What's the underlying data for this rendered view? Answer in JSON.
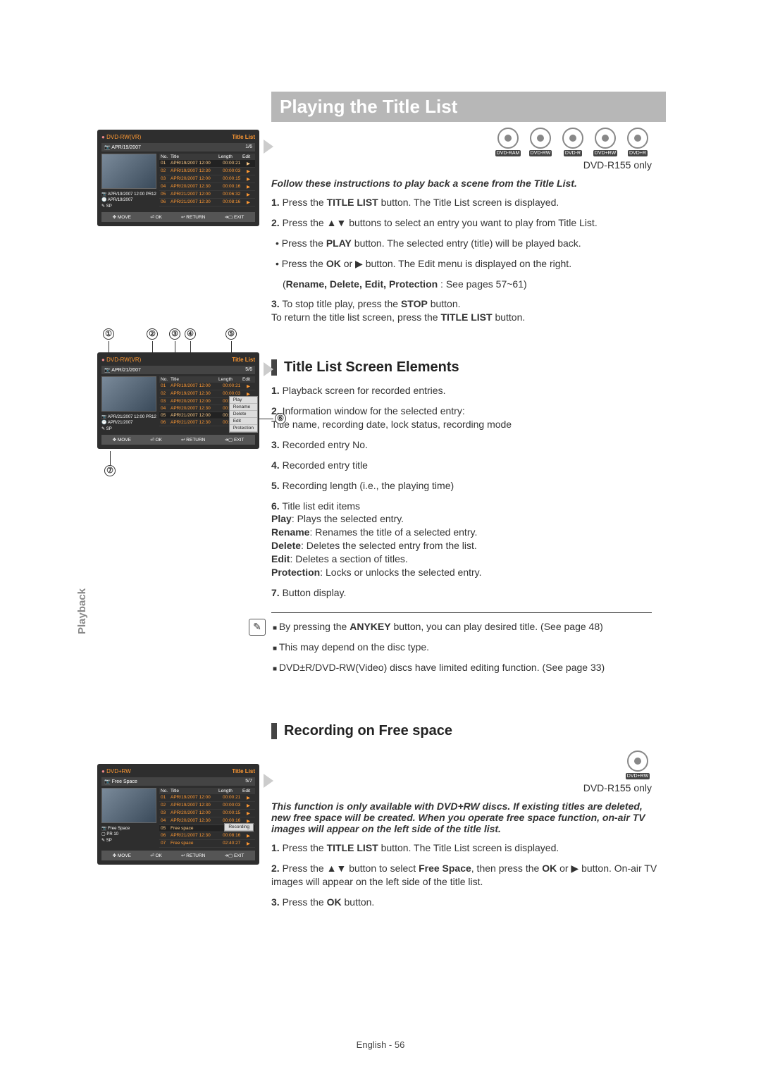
{
  "page": {
    "side_tab": "Playback",
    "footer": "English - 56"
  },
  "heading": "Playing the Title List",
  "discs": [
    "DVD-RAM",
    "DVD-RW",
    "DVD-R",
    "DVD+RW",
    "DVD+R"
  ],
  "model_note": "DVD-R155 only",
  "intro1": "Follow these instructions to play back a scene from the Title List.",
  "steps1": [
    {
      "n": "1.",
      "html": "Press the <b>TITLE LIST</b> button. The Title List screen is displayed."
    },
    {
      "n": "2.",
      "html": "Press the ▲▼ buttons to select an entry you want to play from Title List."
    },
    {
      "sub": true,
      "html": "Press the <b>PLAY</b> button. The selected entry (title) will be played back."
    },
    {
      "sub": true,
      "html": "Press the <b>OK</b> or ▶ button. The Edit menu is displayed on the right."
    },
    {
      "indent": true,
      "html": "(<b>Rename, Delete, Edit, Protection</b> : See pages 57~61)"
    },
    {
      "n": "3.",
      "html": "To stop title play, press the <b>STOP</b> button.<br>To return the title list screen, press the <b>TITLE LIST</b> button."
    }
  ],
  "sub_heading1": "Title List Screen Elements",
  "elements": [
    {
      "n": "1.",
      "html": "Playback screen for recorded entries."
    },
    {
      "n": "2.",
      "html": "Information window for the selected entry:<br>Title name, recording date, lock status, recording mode"
    },
    {
      "n": "3.",
      "html": "Recorded entry No."
    },
    {
      "n": "4.",
      "html": "Recorded entry title"
    },
    {
      "n": "5.",
      "html": "Recording length (i.e., the playing time)"
    },
    {
      "n": "6.",
      "html": "Title list edit items<br><b>Play</b>: Plays the selected entry.<br><b>Rename</b>: Renames the title of a selected entry.<br><b>Delete</b>: Deletes the selected entry from the list.<br><b>Edit</b>: Deletes a section of titles.<br><b>Protection</b>: Locks or unlocks the selected entry."
    },
    {
      "n": "7.",
      "html": "Button display."
    }
  ],
  "notes": [
    "By pressing the <b>ANYKEY</b> button, you can play desired title. (See page 48)",
    "This may depend on the disc type.",
    "DVD±R/DVD-RW(Video) discs have limited editing function. (See page 33)"
  ],
  "sub_heading2": "Recording on Free space",
  "discs2": [
    "DVD+RW"
  ],
  "intro2": "This function is only available with DVD+RW discs. If existing titles are deleted, new free space will be created. When you operate free space function, on-air TV images will appear on the left side of the title list.",
  "steps2": [
    {
      "n": "1.",
      "html": "Press the <b>TITLE LIST</b> button. The Title List screen is displayed."
    },
    {
      "n": "2.",
      "html": "Press the ▲▼ button to select <b>Free Space</b>, then press the <b>OK</b> or ▶ button. On-air TV images will appear on the left side of the title list."
    },
    {
      "n": "3.",
      "html": "Press the <b>OK</b> button."
    }
  ],
  "ui1": {
    "disc": "DVD-RW(VR)",
    "tl": "Title List",
    "sub_l": "📷 APR/19/2007",
    "sub_r": "1/6",
    "info": [
      "📷 APR/19/2007 12:00 PR12",
      "🕐 APR/19/2007",
      "✎   SP"
    ],
    "head": [
      "No.",
      "Title",
      "Length",
      "Edit"
    ],
    "rows": [
      [
        "01",
        "APR/19/2007 12:00",
        "00:00:21",
        "▶"
      ],
      [
        "02",
        "APR/19/2007 12:30",
        "00:00:03",
        "▶"
      ],
      [
        "03",
        "APR/20/2007 12:00",
        "00:00:15",
        "▶"
      ],
      [
        "04",
        "APR/20/2007 12:30",
        "00:00:16",
        "▶"
      ],
      [
        "05",
        "APR/21/2007 12:00",
        "00:06:32",
        "▶"
      ],
      [
        "06",
        "APR/21/2007 12:30",
        "00:08:16",
        "▶"
      ]
    ],
    "footer": [
      "✥ MOVE",
      "⏎ OK",
      "↩ RETURN",
      "➜▢ EXIT"
    ]
  },
  "ui2": {
    "disc": "DVD-RW(VR)",
    "tl": "Title List",
    "sub_l": "📷 APR/21/2007",
    "sub_r": "5/6",
    "info": [
      "📷 APR/21/2007 12:00 PR12",
      "🕐 APR/21/2007",
      "✎   SP"
    ],
    "head": [
      "No.",
      "Title",
      "Length",
      "Edit"
    ],
    "rows": [
      [
        "01",
        "APR/19/2007 12:00",
        "00:00:21",
        "▶"
      ],
      [
        "02",
        "APR/19/2007 12:30",
        "00:00:03",
        "▶"
      ],
      [
        "03",
        "APR/20/2007 12:00",
        "00:00:15",
        ""
      ],
      [
        "04",
        "APR/20/2007 12:30",
        "00:00:16",
        ""
      ],
      [
        "05",
        "APR/21/2007 12:00",
        "00:06:32",
        ""
      ],
      [
        "06",
        "APR/21/2007 12:30",
        "00:08:16",
        ""
      ]
    ],
    "popup": [
      "Play",
      "Rename",
      "Delete",
      "Edit",
      "Protection"
    ],
    "footer": [
      "✥ MOVE",
      "⏎ OK",
      "↩ RETURN",
      "➜▢ EXIT"
    ]
  },
  "ui3": {
    "disc": "DVD+RW",
    "tl": "Title List",
    "sub_l": "📷 Free Space",
    "sub_r": "5/7",
    "info": [
      "📷 Free Space",
      "▢   PR 10",
      "✎   SP"
    ],
    "head": [
      "No.",
      "Title",
      "Length",
      "Edit"
    ],
    "rows": [
      [
        "01",
        "APR/19/2007 12:00",
        "00:00:21",
        "▶"
      ],
      [
        "02",
        "APR/19/2007 12:30",
        "00:00:03",
        "▶"
      ],
      [
        "03",
        "APR/20/2007 12:00",
        "00:00:15",
        "▶"
      ],
      [
        "04",
        "APR/20/2007 12:30",
        "00:00:16",
        "▶"
      ],
      [
        "05",
        "Free space",
        "",
        ""
      ],
      [
        "06",
        "APR/21/2007 12:30",
        "00:08:16",
        "▶"
      ],
      [
        "07",
        "Free space",
        "02:40:27",
        "▶"
      ]
    ],
    "rec": "Recording",
    "footer": [
      "✥ MOVE",
      "⏎ OK",
      "↩ RETURN",
      "➜▢ EXIT"
    ]
  },
  "callouts_top": [
    "①",
    "②",
    "③",
    "④",
    "⑤"
  ],
  "callout_6": "⑥",
  "callout_7": "⑦"
}
